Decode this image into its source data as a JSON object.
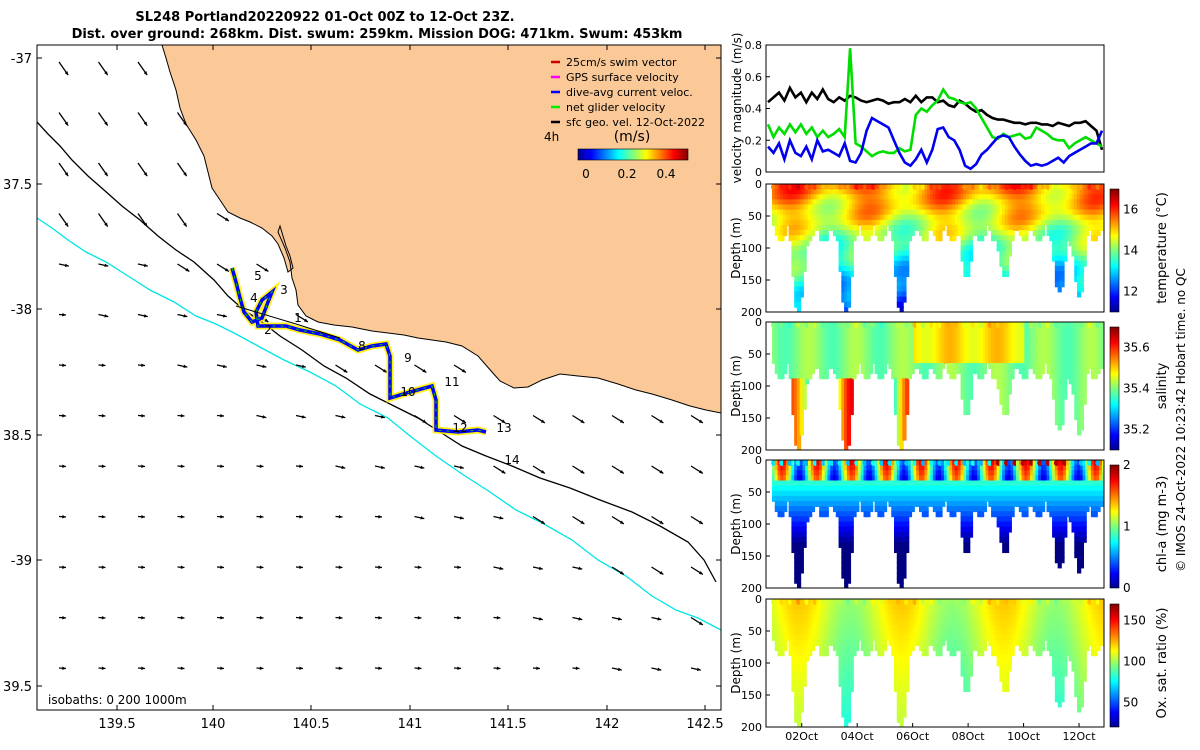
{
  "title": {
    "line1": "SL248 Portland20220922 01-Oct 00Z to 12-Oct 23Z.",
    "line2": "Dist. over ground: 268km. Dist. swum: 259km. Mission DOG: 471km. Swum: 453km"
  },
  "map": {
    "lat_ticks": [
      "-37",
      "37.5",
      "-38",
      "38.5",
      "-39",
      "39.5"
    ],
    "lon_ticks": [
      "139.5",
      "140",
      "140.5",
      "141",
      "141.5",
      "142",
      "142.5"
    ],
    "isobath_label": "isobaths: 0   200  1000m",
    "legend": {
      "items": [
        {
          "label": "25cm/s swim vector",
          "color": "#cc0000"
        },
        {
          "label": "GPS surface velocity",
          "color": "#ff00ff"
        },
        {
          "label": "dive-avg current veloc.",
          "color": "#0000ff"
        },
        {
          "label": "net glider velocity",
          "color": "#00ee00"
        },
        {
          "label": "sfc geo. vel. 12-Oct-2022",
          "color": "#000000"
        }
      ]
    },
    "time_tag": "4h",
    "colorbar": {
      "title": "(m/s)",
      "ticks": [
        "0",
        "0.2",
        "0.4"
      ]
    },
    "day_labels": [
      "1",
      "2",
      "3",
      "4",
      "5",
      "8",
      "9",
      "10",
      "11",
      "12",
      "13",
      "14"
    ],
    "colors": {
      "land": "#fbc998",
      "coast_200": "#000000",
      "isobath_1000": "#00e5e5",
      "track": "#0000ff"
    }
  },
  "chart_data": [
    {
      "type": "line",
      "ylabel": "velocity magnitude (m/s)",
      "ylim": [
        0,
        0.8
      ],
      "yticks": [
        "0",
        "0.2",
        "0.4",
        "0.6",
        "0.8"
      ],
      "series": [
        {
          "name": "sfc geo. vel.",
          "color": "#000000",
          "values": [
            0.44,
            0.47,
            0.5,
            0.45,
            0.53,
            0.47,
            0.5,
            0.44,
            0.5,
            0.46,
            0.52,
            0.46,
            0.44,
            0.47,
            0.45,
            0.48,
            0.47,
            0.45,
            0.44,
            0.45,
            0.46,
            0.45,
            0.43,
            0.44,
            0.44,
            0.46,
            0.44,
            0.48,
            0.44,
            0.47,
            0.47,
            0.44,
            0.45,
            0.42,
            0.41,
            0.45,
            0.43,
            0.4,
            0.38,
            0.39,
            0.36,
            0.34,
            0.33,
            0.33,
            0.32,
            0.31,
            0.31,
            0.3,
            0.31,
            0.31,
            0.3,
            0.3,
            0.29,
            0.31,
            0.3,
            0.29,
            0.31,
            0.31,
            0.32,
            0.29,
            0.26,
            0.14
          ]
        },
        {
          "name": "net glider velocity",
          "color": "#00dd00",
          "values": [
            0.3,
            0.22,
            0.28,
            0.24,
            0.3,
            0.25,
            0.3,
            0.24,
            0.28,
            0.22,
            0.26,
            0.22,
            0.24,
            0.27,
            0.22,
            0.78,
            0.18,
            0.16,
            0.13,
            0.1,
            0.12,
            0.13,
            0.12,
            0.12,
            0.15,
            0.13,
            0.14,
            0.36,
            0.4,
            0.38,
            0.42,
            0.45,
            0.52,
            0.47,
            0.46,
            0.44,
            0.43,
            0.44,
            0.4,
            0.34,
            0.28,
            0.22,
            0.21,
            0.24,
            0.22,
            0.23,
            0.24,
            0.21,
            0.22,
            0.28,
            0.26,
            0.24,
            0.21,
            0.2,
            0.2,
            0.15,
            0.18,
            0.2,
            0.22,
            0.2,
            0.18,
            0.16
          ]
        },
        {
          "name": "dive-avg current veloc.",
          "color": "#0000ee",
          "values": [
            0.16,
            0.12,
            0.18,
            0.08,
            0.2,
            0.12,
            0.1,
            0.16,
            0.08,
            0.2,
            0.13,
            0.14,
            0.12,
            0.1,
            0.18,
            0.07,
            0.06,
            0.12,
            0.26,
            0.34,
            0.32,
            0.3,
            0.28,
            0.2,
            0.12,
            0.06,
            0.04,
            0.08,
            0.14,
            0.06,
            0.14,
            0.27,
            0.28,
            0.22,
            0.2,
            0.14,
            0.04,
            0.02,
            0.05,
            0.11,
            0.14,
            0.18,
            0.22,
            0.23,
            0.22,
            0.16,
            0.11,
            0.07,
            0.04,
            0.05,
            0.04,
            0.05,
            0.07,
            0.09,
            0.06,
            0.1,
            0.12,
            0.14,
            0.16,
            0.18,
            0.18,
            0.26
          ]
        }
      ]
    },
    {
      "type": "heatmap",
      "ylabel": "Depth (m)",
      "clabel": "temperature (°C)",
      "ylim": [
        200,
        0
      ],
      "yticks": [
        "0",
        "50",
        "100",
        "150",
        "200"
      ],
      "cticks": [
        "12",
        "14",
        "16"
      ],
      "crange": [
        11,
        17
      ]
    },
    {
      "type": "heatmap",
      "ylabel": "Depth (m)",
      "clabel": "salinity",
      "ylim": [
        200,
        0
      ],
      "yticks": [
        "0",
        "50",
        "100",
        "150",
        "200"
      ],
      "cticks": [
        "35.2",
        "35.4",
        "35.6"
      ],
      "crange": [
        35.1,
        35.7
      ]
    },
    {
      "type": "heatmap",
      "ylabel": "Depth (m)",
      "clabel": "chl-a (mg m-3)",
      "ylim": [
        200,
        0
      ],
      "yticks": [
        "0",
        "50",
        "100",
        "150",
        "200"
      ],
      "cticks": [
        "0",
        "1",
        "2"
      ],
      "crange": [
        0,
        2
      ]
    },
    {
      "type": "heatmap",
      "ylabel": "Depth (m)",
      "clabel": "Ox. sat. ratio (%)",
      "ylim": [
        200,
        0
      ],
      "yticks": [
        "0",
        "50",
        "100",
        "150",
        "200"
      ],
      "cticks": [
        "50",
        "100",
        "150"
      ],
      "crange": [
        20,
        170
      ],
      "xticks": [
        "02Oct",
        "04Oct",
        "06Oct",
        "08Oct",
        "10Oct",
        "12Oct"
      ]
    }
  ],
  "footer": "© IMOS 24-Oct-2022 10:23:42 Hobart time. no QC"
}
